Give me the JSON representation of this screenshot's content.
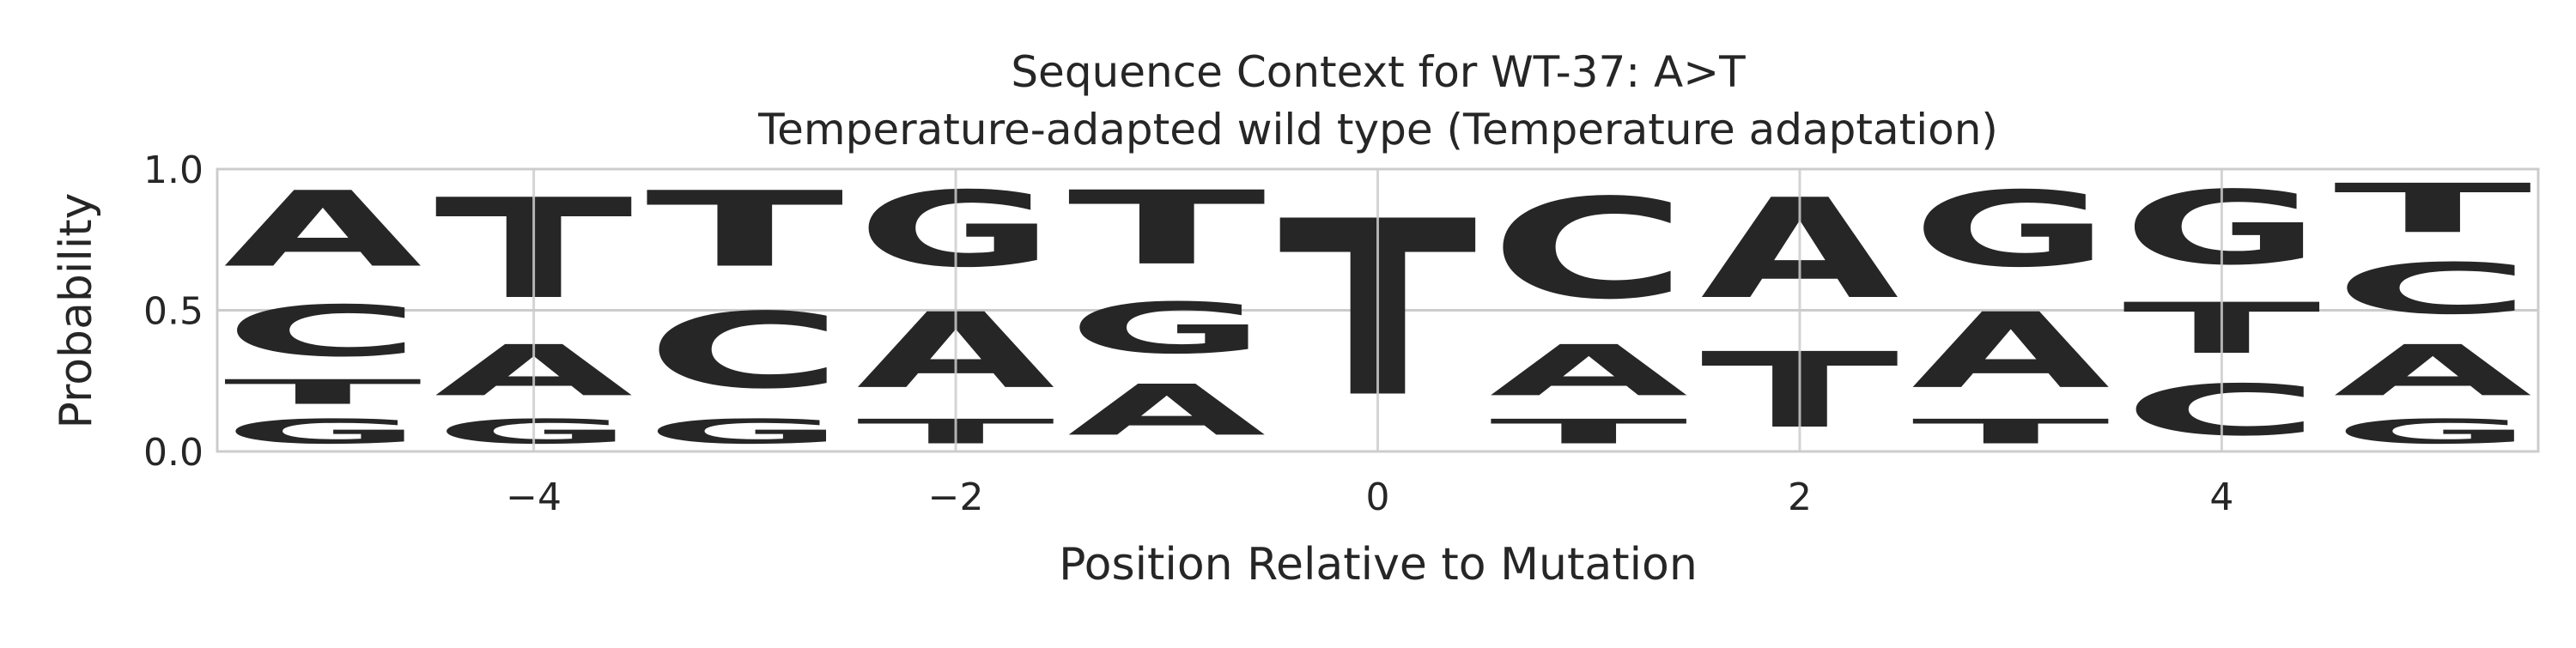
{
  "chart_data": {
    "type": "sequence-logo",
    "title": "Sequence Context for WT-37: A>T",
    "subtitle": "Temperature-adapted wild type (Temperature adaptation)",
    "xlabel": "Position Relative to Mutation",
    "ylabel": "Probability",
    "xlim": [
      -5.5,
      5.5
    ],
    "ylim": [
      0,
      1
    ],
    "x_ticks": [
      {
        "value": -4,
        "label": "−4"
      },
      {
        "value": -2,
        "label": "−2"
      },
      {
        "value": 0,
        "label": "0"
      },
      {
        "value": 2,
        "label": "2"
      },
      {
        "value": 4,
        "label": "4"
      }
    ],
    "y_ticks": [
      {
        "value": 0,
        "label": "0.0"
      },
      {
        "value": 0.5,
        "label": "0.5"
      },
      {
        "value": 1,
        "label": "1.0"
      }
    ],
    "grid": true,
    "colors": {
      "A": "#008000",
      "C": "#0000ff",
      "G": "#ffa500",
      "T": "#ff0000"
    },
    "positions": [
      {
        "x": -5,
        "stack": [
          {
            "base": "G",
            "p": 0.14
          },
          {
            "base": "T",
            "p": 0.14
          },
          {
            "base": "C",
            "p": 0.29
          },
          {
            "base": "A",
            "p": 0.43
          }
        ]
      },
      {
        "x": -4,
        "stack": [
          {
            "base": "G",
            "p": 0.14
          },
          {
            "base": "A",
            "p": 0.29
          },
          {
            "base": "T",
            "p": 0.57
          }
        ]
      },
      {
        "x": -3,
        "stack": [
          {
            "base": "G",
            "p": 0.14
          },
          {
            "base": "C",
            "p": 0.43
          },
          {
            "base": "T",
            "p": 0.43
          }
        ]
      },
      {
        "x": -2,
        "stack": [
          {
            "base": "T",
            "p": 0.14
          },
          {
            "base": "A",
            "p": 0.43
          },
          {
            "base": "G",
            "p": 0.43
          }
        ]
      },
      {
        "x": -1,
        "stack": [
          {
            "base": "A",
            "p": 0.29
          },
          {
            "base": "G",
            "p": 0.29
          },
          {
            "base": "T",
            "p": 0.42
          }
        ]
      },
      {
        "x": 0,
        "stack": [
          {
            "base": "T",
            "p": 1.0
          }
        ]
      },
      {
        "x": 1,
        "stack": [
          {
            "base": "T",
            "p": 0.14
          },
          {
            "base": "A",
            "p": 0.29
          },
          {
            "base": "C",
            "p": 0.57
          }
        ]
      },
      {
        "x": 2,
        "stack": [
          {
            "base": "T",
            "p": 0.43
          },
          {
            "base": "A",
            "p": 0.57
          }
        ]
      },
      {
        "x": 3,
        "stack": [
          {
            "base": "T",
            "p": 0.14
          },
          {
            "base": "A",
            "p": 0.43
          },
          {
            "base": "G",
            "p": 0.43
          }
        ]
      },
      {
        "x": 4,
        "stack": [
          {
            "base": "C",
            "p": 0.29
          },
          {
            "base": "T",
            "p": 0.29
          },
          {
            "base": "G",
            "p": 0.42
          }
        ]
      },
      {
        "x": 5,
        "stack": [
          {
            "base": "G",
            "p": 0.14
          },
          {
            "base": "A",
            "p": 0.29
          },
          {
            "base": "C",
            "p": 0.29
          },
          {
            "base": "T",
            "p": 0.28
          }
        ]
      }
    ]
  }
}
